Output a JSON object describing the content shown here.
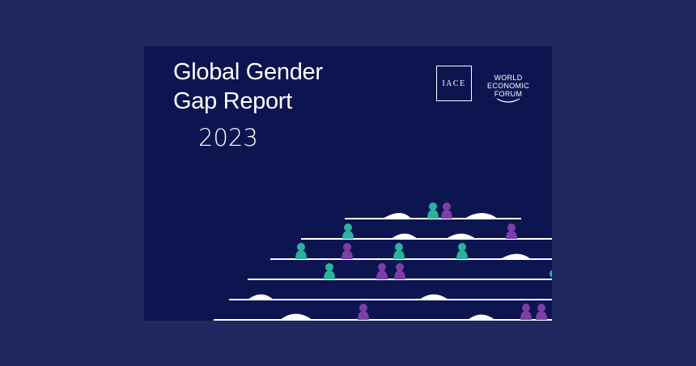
{
  "cover": {
    "title_line1": "Global Gender",
    "title_line2": "Gap Report",
    "year": "2023"
  },
  "logos": {
    "iace": "IACE",
    "wef_line1": "WORLD",
    "wef_line2": "ECONOMIC",
    "wef_line3": "FORUM"
  },
  "colors": {
    "background": "#1f2960",
    "cover": "#0d1550",
    "teal": "#2bb3a0",
    "purple": "#7c3fa6",
    "line": "#ffffff"
  },
  "icons": [
    "person-icon-teal",
    "person-icon-purple",
    "bell-curve-icon"
  ]
}
